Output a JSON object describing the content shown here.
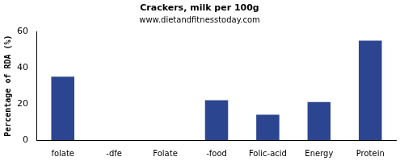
{
  "chart_data": {
    "type": "bar",
    "title": "Crackers, milk per 100g",
    "subtitle": "www.dietandfitnesstoday.com",
    "y_label": "Percentage of RDA (%)",
    "categories": [
      "folate",
      "-dfe",
      "Folate",
      "-food",
      "Folic-acid",
      "Energy",
      "Protein"
    ],
    "values": [
      35,
      0,
      0,
      22,
      14,
      21,
      55
    ],
    "color": "#2b4590",
    "ylim": [
      0,
      60
    ],
    "yticks": [
      0,
      20,
      40,
      60
    ],
    "grid": false
  }
}
